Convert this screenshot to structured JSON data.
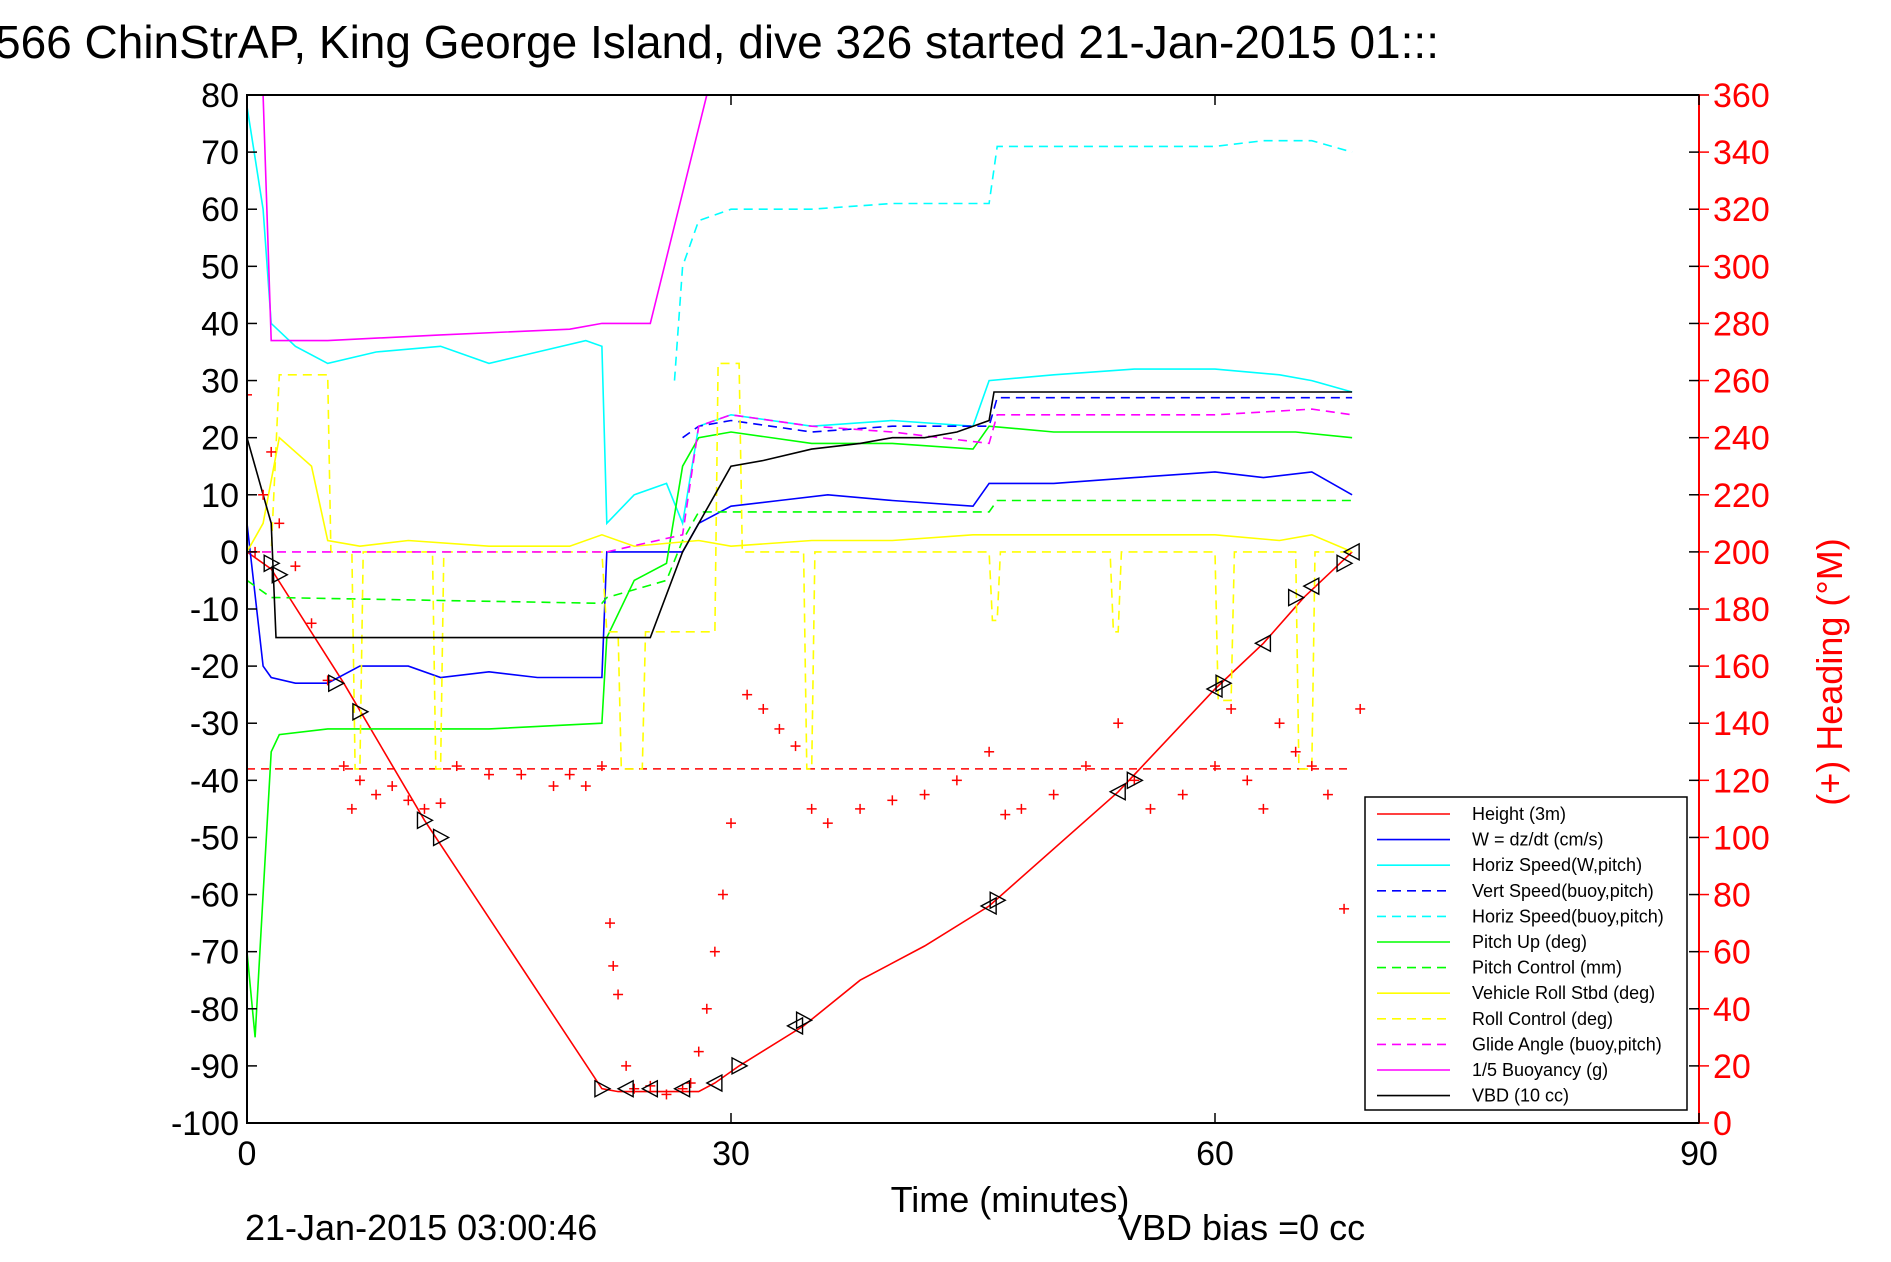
{
  "title": "566 ChinStrAP, King George Island, dive 326 started 21-Jan-2015 01:::",
  "xlabel": "Time (minutes)",
  "ylabel_right": "(+) Heading (°M)",
  "footer_date": "21-Jan-2015 03:00:46",
  "footer_vbd": "VBD bias =0 cc",
  "chart_data": {
    "type": "line",
    "xlim": [
      0,
      90
    ],
    "ylim": [
      -100,
      80
    ],
    "ylim_right": [
      0,
      360
    ],
    "xticks": [
      0,
      30,
      60,
      90
    ],
    "yticks": [
      -100,
      -90,
      -80,
      -70,
      -60,
      -50,
      -40,
      -30,
      -20,
      -10,
      0,
      10,
      20,
      30,
      40,
      50,
      60,
      70,
      80
    ],
    "yticks_right": [
      0,
      20,
      40,
      60,
      80,
      100,
      120,
      140,
      160,
      180,
      200,
      220,
      240,
      260,
      280,
      300,
      320,
      340,
      360
    ],
    "grid": false,
    "legend_position": "lower-right",
    "series": [
      {
        "name": "Height (3m)",
        "color": "#ff0000",
        "dash": "solid",
        "x": [
          0,
          1.5,
          6,
          11,
          22,
          23,
          28,
          29,
          30.5,
          34.5,
          38,
          42,
          46,
          54,
          60,
          63,
          65.5,
          68.5
        ],
        "y": [
          0,
          -3,
          -23,
          -47,
          -94,
          -94.5,
          -94.5,
          -93,
          -90,
          -83,
          -75,
          -69,
          -62,
          -42,
          -24,
          -16,
          -8,
          0
        ]
      },
      {
        "name": "W = dz/dt (cm/s)",
        "color": "#0000ff",
        "dash": "solid",
        "x": [
          0,
          1,
          1.5,
          3,
          5,
          7,
          10,
          12,
          15,
          18,
          22,
          22.3,
          25,
          27,
          28,
          30,
          33,
          36,
          40,
          45,
          46,
          50,
          55,
          60,
          63,
          66,
          68.5
        ],
        "y": [
          5,
          -20,
          -22,
          -23,
          -23,
          -20,
          -20,
          -22,
          -21,
          -22,
          -22,
          0,
          0,
          0,
          5,
          8,
          9,
          10,
          9,
          8,
          12,
          12,
          13,
          14,
          13,
          14,
          10
        ]
      },
      {
        "name": "Horiz Speed(W,pitch)",
        "color": "#00ffff",
        "dash": "solid",
        "x": [
          0,
          1,
          1.5,
          3,
          5,
          8,
          12,
          15,
          18,
          21,
          22,
          22.3,
          24,
          26,
          27,
          28,
          30,
          35,
          40,
          45,
          46,
          50,
          55,
          60,
          64,
          66,
          68.5
        ],
        "y": [
          78,
          60,
          40,
          36,
          33,
          35,
          36,
          33,
          35,
          37,
          36,
          5,
          10,
          12,
          5,
          22,
          24,
          22,
          23,
          22,
          30,
          31,
          32,
          32,
          31,
          30,
          28
        ]
      },
      {
        "name": "Vert Speed(buoy,pitch)",
        "color": "#0000ff",
        "dash": "dashed",
        "x": [
          27,
          28,
          30,
          35,
          40,
          46,
          46.5,
          55,
          60,
          65,
          68.5
        ],
        "y": [
          20,
          22,
          23,
          21,
          22,
          22,
          27,
          27,
          27,
          27,
          27
        ]
      },
      {
        "name": "Horiz Speed(buoy,pitch)",
        "color": "#00ffff",
        "dash": "dashed",
        "x": [
          26.5,
          27,
          28,
          30,
          35,
          40,
          46,
          46.5,
          55,
          60,
          63,
          66,
          68.5
        ],
        "y": [
          30,
          50,
          58,
          60,
          60,
          61,
          61,
          71,
          71,
          71,
          72,
          72,
          70
        ]
      },
      {
        "name": "Pitch Up (deg)",
        "color": "#00ff00",
        "dash": "solid",
        "x": [
          0,
          0.5,
          1,
          1.5,
          2,
          5,
          10,
          15,
          22,
          22.3,
          24,
          26,
          27,
          28,
          30,
          35,
          40,
          45,
          46,
          50,
          55,
          60,
          65,
          68.5
        ],
        "y": [
          -70,
          -85,
          -60,
          -35,
          -32,
          -31,
          -31,
          -31,
          -30,
          -15,
          -5,
          -2,
          15,
          20,
          21,
          19,
          19,
          18,
          22,
          21,
          21,
          21,
          21,
          20
        ]
      },
      {
        "name": "Pitch Control (mm)",
        "color": "#00ff00",
        "dash": "dashed",
        "x": [
          0,
          1.5,
          2,
          22,
          22.3,
          26,
          27,
          28,
          46,
          46.5,
          68.5
        ],
        "y": [
          -5,
          -8,
          -8,
          -9,
          -8,
          -5,
          2,
          7,
          7,
          9,
          9
        ]
      },
      {
        "name": "Vehicle Roll Stbd (deg)",
        "color": "#ffff00",
        "dash": "solid",
        "x": [
          0,
          1,
          2,
          4,
          5,
          7,
          10,
          15,
          20,
          22,
          24,
          28,
          30,
          35,
          40,
          45,
          50,
          55,
          60,
          64,
          66,
          68.5
        ],
        "y": [
          0,
          5,
          20,
          15,
          2,
          1,
          2,
          1,
          1,
          3,
          1,
          2,
          1,
          2,
          2,
          3,
          3,
          3,
          3,
          2,
          3,
          0
        ]
      },
      {
        "name": "Roll Control (deg)",
        "color": "#ffff00",
        "dash": "dashed",
        "x": [
          0,
          1.5,
          2,
          5,
          5.2,
          6.5,
          6.7,
          7,
          7.2,
          11.5,
          11.7,
          12,
          12.2,
          22,
          22.3,
          23,
          23.2,
          24.5,
          24.7,
          27,
          29,
          29.2,
          30.5,
          30.7,
          34.5,
          34.7,
          35,
          35.2,
          46,
          46.2,
          46.5,
          46.7,
          53.5,
          53.7,
          54,
          54.2,
          60,
          60.2,
          61,
          61.2,
          65,
          65.2,
          66,
          66.2,
          68.5
        ],
        "y": [
          0,
          0,
          31,
          31,
          0,
          0,
          -38,
          -38,
          0,
          0,
          -38,
          -38,
          0,
          0,
          -14,
          -14,
          -38,
          -38,
          -14,
          -14,
          -14,
          33,
          33,
          0,
          0,
          -38,
          -38,
          0,
          0,
          -12,
          -12,
          0,
          0,
          -14,
          -14,
          0,
          0,
          -26,
          -26,
          0,
          0,
          -38,
          -38,
          0,
          0
        ]
      },
      {
        "name": "Glide Angle (buoy,pitch)",
        "color": "#ff00ff",
        "dash": "dashed",
        "x": [
          0,
          22,
          22.3,
          27,
          28,
          30,
          35,
          40,
          46,
          46.5,
          55,
          60,
          66,
          68.5
        ],
        "y": [
          0,
          0,
          0,
          3,
          22,
          24,
          22,
          21,
          19,
          24,
          24,
          24,
          25,
          24
        ]
      },
      {
        "name": "1/5 Buoyancy (g)",
        "color": "#ff00ff",
        "dash": "solid",
        "x": [
          1,
          1.5,
          5,
          12,
          20,
          22,
          25,
          28.5
        ],
        "y": [
          80,
          37,
          37,
          38,
          39,
          40,
          40,
          80
        ]
      },
      {
        "name": "VBD (10 cc)",
        "color": "#000000",
        "dash": "solid",
        "x": [
          0,
          1.5,
          1.8,
          22,
          25,
          27,
          29,
          30,
          32,
          35,
          38,
          40,
          42,
          44,
          46,
          46.3,
          60,
          68.5
        ],
        "y": [
          20,
          5,
          -15,
          -15,
          -15,
          0,
          10,
          15,
          16,
          18,
          19,
          20,
          20,
          21,
          23,
          28,
          28,
          28
        ]
      }
    ],
    "heading_series": {
      "name": "Heading",
      "color": "#ff0000",
      "marker": "+",
      "axis": "right",
      "x": [
        0,
        0.5,
        1,
        1.5,
        2,
        3,
        4,
        5,
        6,
        6.5,
        7,
        8,
        9,
        10,
        11,
        12,
        13,
        15,
        17,
        19,
        20,
        21,
        22,
        22.5,
        22.7,
        23,
        23.5,
        24,
        25,
        26,
        27,
        27.5,
        28,
        28.5,
        29,
        29.5,
        30,
        31,
        32,
        33,
        34,
        35,
        36,
        38,
        40,
        42,
        44,
        46,
        47,
        48,
        50,
        52,
        54,
        55,
        56,
        58,
        60,
        61,
        62,
        63,
        64,
        65,
        66,
        67,
        68,
        69
      ],
      "y": [
        255,
        200,
        220,
        235,
        210,
        195,
        175,
        155,
        125,
        110,
        120,
        115,
        118,
        113,
        110,
        112,
        125,
        122,
        122,
        118,
        122,
        118,
        125,
        70,
        55,
        45,
        20,
        12,
        13,
        10,
        12,
        14,
        25,
        40,
        60,
        80,
        105,
        150,
        145,
        138,
        132,
        110,
        105,
        110,
        113,
        115,
        120,
        130,
        108,
        110,
        115,
        125,
        140,
        120,
        110,
        115,
        125,
        145,
        120,
        110,
        140,
        130,
        125,
        115,
        75,
        145
      ]
    },
    "reference_line": {
      "color": "#ff0000",
      "dash": "dashed",
      "y_right": 124
    },
    "black_markers": {
      "x": [
        1.5,
        2,
        5.5,
        7,
        11,
        12,
        22,
        23.5,
        25,
        27,
        29,
        30.5,
        34,
        34.5,
        46,
        46.5,
        54,
        55,
        60,
        60.5,
        63,
        65,
        66,
        68,
        68.5
      ],
      "y": [
        -2,
        -4,
        -23,
        -28,
        -47,
        -50,
        -94,
        -94,
        -94,
        -94,
        -93,
        -90,
        -83,
        -82,
        -62,
        -61,
        -42,
        -40,
        -24,
        -23,
        -16,
        -8,
        -6,
        -2,
        0
      ]
    }
  },
  "legend": [
    "Height (3m)",
    "W = dz/dt (cm/s)",
    "Horiz Speed(W,pitch)",
    "Vert Speed(buoy,pitch)",
    "Horiz Speed(buoy,pitch)",
    "Pitch Up (deg)",
    "Pitch Control (mm)",
    "Vehicle Roll Stbd (deg)",
    "Roll Control (deg)",
    "Glide Angle (buoy,pitch)",
    "1/5 Buoyancy (g)",
    "VBD (10 cc)"
  ]
}
